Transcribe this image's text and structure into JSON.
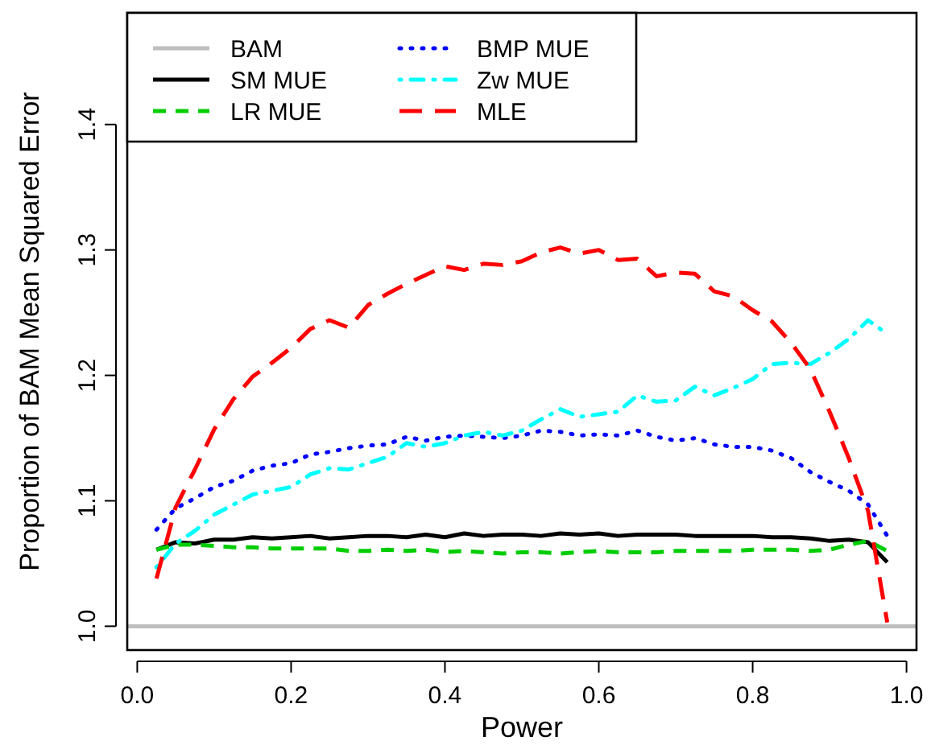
{
  "chart_data": {
    "type": "line",
    "xlabel": "Power",
    "ylabel": "Proportion of BAM Mean Squared Error",
    "x": [
      0.025,
      0.05,
      0.075,
      0.1,
      0.125,
      0.15,
      0.175,
      0.2,
      0.225,
      0.25,
      0.275,
      0.3,
      0.325,
      0.35,
      0.375,
      0.4,
      0.425,
      0.45,
      0.475,
      0.5,
      0.525,
      0.55,
      0.575,
      0.6,
      0.625,
      0.65,
      0.675,
      0.7,
      0.725,
      0.75,
      0.775,
      0.8,
      0.825,
      0.85,
      0.875,
      0.9,
      0.925,
      0.95,
      0.975
    ],
    "xlim": [
      -0.013,
      1.013
    ],
    "ylim": [
      0.981,
      1.489
    ],
    "xticks": [
      {
        "value": 0,
        "label": "0.0"
      },
      {
        "value": 0.2,
        "label": "0.2"
      },
      {
        "value": 0.4,
        "label": "0.4"
      },
      {
        "value": 0.6,
        "label": "0.6"
      },
      {
        "value": 0.8,
        "label": "0.8"
      },
      {
        "value": 1,
        "label": "1.0"
      }
    ],
    "yticks": [
      {
        "value": 1,
        "label": "1.0"
      },
      {
        "value": 1.1,
        "label": "1.1"
      },
      {
        "value": 1.2,
        "label": "1.2"
      },
      {
        "value": 1.3,
        "label": "1.3"
      },
      {
        "value": 1.4,
        "label": "1.4"
      }
    ],
    "grid": false,
    "legend": "top left",
    "marker": "none",
    "series": [
      {
        "name": "BAM",
        "color": "#bebebe",
        "line_style": "solid",
        "x": [
          -0.013,
          1.013
        ],
        "values": [
          1,
          1
        ]
      },
      {
        "name": "SM MUE",
        "color": "#000000",
        "line_style": "solid",
        "values": [
          1.061,
          1.067,
          1.066,
          1.069,
          1.069,
          1.071,
          1.07,
          1.071,
          1.072,
          1.07,
          1.071,
          1.072,
          1.072,
          1.071,
          1.073,
          1.071,
          1.074,
          1.072,
          1.073,
          1.073,
          1.072,
          1.074,
          1.073,
          1.074,
          1.072,
          1.073,
          1.073,
          1.073,
          1.072,
          1.072,
          1.072,
          1.072,
          1.071,
          1.071,
          1.07,
          1.068,
          1.069,
          1.067,
          1.051
        ]
      },
      {
        "name": "LR MUE",
        "color": "#00cd00",
        "line_style": "dashed",
        "values": [
          1.061,
          1.065,
          1.065,
          1.064,
          1.063,
          1.063,
          1.062,
          1.062,
          1.062,
          1.062,
          1.06,
          1.06,
          1.061,
          1.06,
          1.061,
          1.059,
          1.06,
          1.059,
          1.058,
          1.059,
          1.059,
          1.058,
          1.059,
          1.06,
          1.059,
          1.059,
          1.059,
          1.06,
          1.06,
          1.06,
          1.06,
          1.061,
          1.061,
          1.061,
          1.06,
          1.061,
          1.065,
          1.068,
          1.06
        ]
      },
      {
        "name": "BMP MUE",
        "color": "#0000ff",
        "line_style": "dotted",
        "values": [
          1.077,
          1.094,
          1.102,
          1.111,
          1.116,
          1.124,
          1.128,
          1.13,
          1.137,
          1.139,
          1.142,
          1.144,
          1.145,
          1.151,
          1.148,
          1.151,
          1.152,
          1.151,
          1.15,
          1.152,
          1.156,
          1.155,
          1.152,
          1.153,
          1.152,
          1.156,
          1.151,
          1.148,
          1.15,
          1.145,
          1.143,
          1.143,
          1.14,
          1.134,
          1.123,
          1.115,
          1.108,
          1.097,
          1.072
        ]
      },
      {
        "name": "Zw MUE",
        "color": "#00ffff",
        "line_style": "dashdot",
        "values": [
          1.047,
          1.066,
          1.076,
          1.089,
          1.097,
          1.105,
          1.108,
          1.111,
          1.121,
          1.126,
          1.125,
          1.13,
          1.135,
          1.146,
          1.143,
          1.146,
          1.152,
          1.155,
          1.152,
          1.156,
          1.165,
          1.173,
          1.167,
          1.169,
          1.171,
          1.184,
          1.179,
          1.18,
          1.191,
          1.184,
          1.19,
          1.197,
          1.209,
          1.21,
          1.209,
          1.218,
          1.229,
          1.244,
          1.233
        ]
      },
      {
        "name": "MLE",
        "color": "#ff0000",
        "line_style": "longdash",
        "values": [
          1.038,
          1.095,
          1.125,
          1.157,
          1.181,
          1.199,
          1.21,
          1.222,
          1.237,
          1.244,
          1.238,
          1.256,
          1.265,
          1.273,
          1.28,
          1.287,
          1.284,
          1.289,
          1.288,
          1.291,
          1.298,
          1.302,
          1.297,
          1.3,
          1.292,
          1.293,
          1.279,
          1.282,
          1.281,
          1.267,
          1.263,
          1.252,
          1.243,
          1.226,
          1.205,
          1.171,
          1.134,
          1.092,
          1.003
        ]
      }
    ]
  }
}
